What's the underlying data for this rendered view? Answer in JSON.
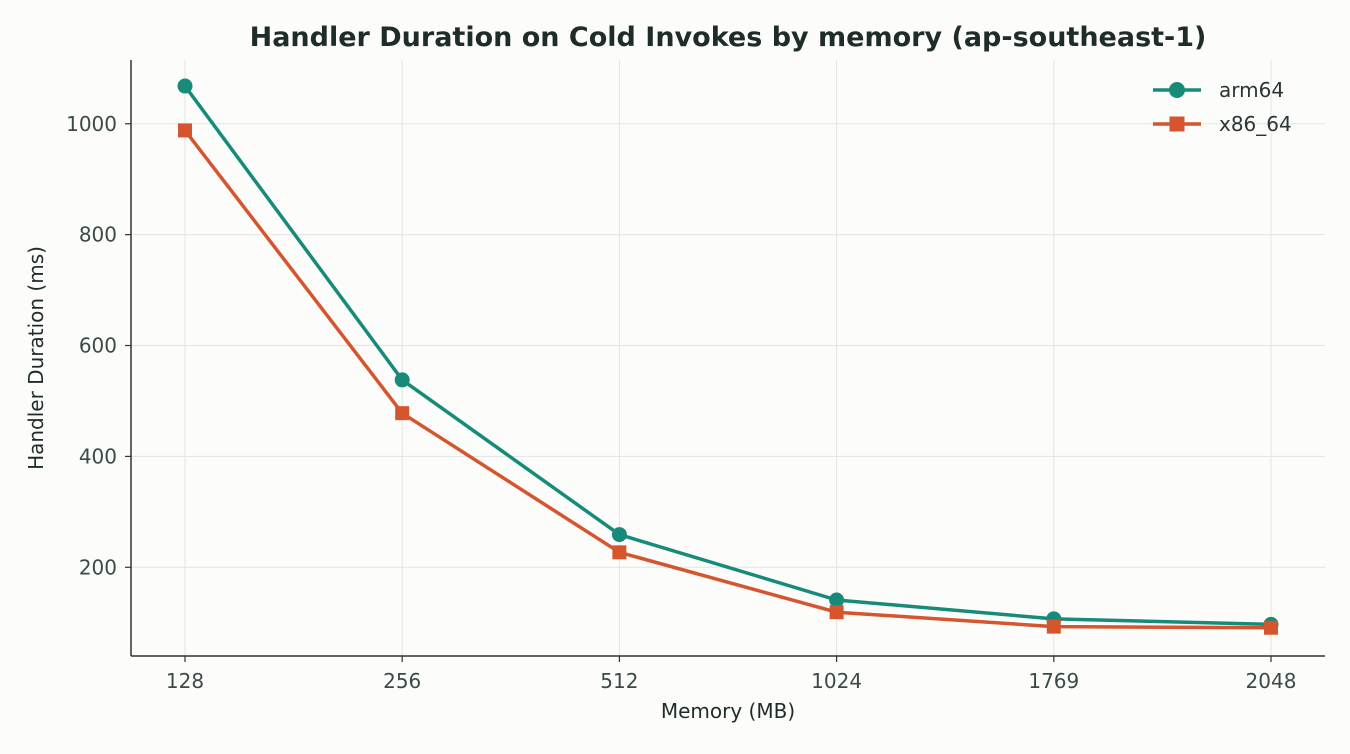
{
  "chart_data": {
    "type": "line",
    "title": "Handler Duration on Cold Invokes by memory (ap-southeast-1)",
    "xlabel": "Memory (MB)",
    "ylabel": "Handler Duration (ms)",
    "categories": [
      "128",
      "256",
      "512",
      "1024",
      "1769",
      "2048"
    ],
    "yticks": [
      200,
      400,
      600,
      800,
      1000
    ],
    "ylim": [
      40,
      1115
    ],
    "grid": true,
    "legend_position": "top-right",
    "series": [
      {
        "name": "arm64",
        "color": "#168b7a",
        "marker": "circle",
        "values": [
          1068,
          538,
          259,
          141,
          107,
          97
        ]
      },
      {
        "name": "x86_64",
        "color": "#d4552e",
        "marker": "square",
        "values": [
          988,
          478,
          227,
          119,
          93,
          91
        ]
      }
    ]
  }
}
